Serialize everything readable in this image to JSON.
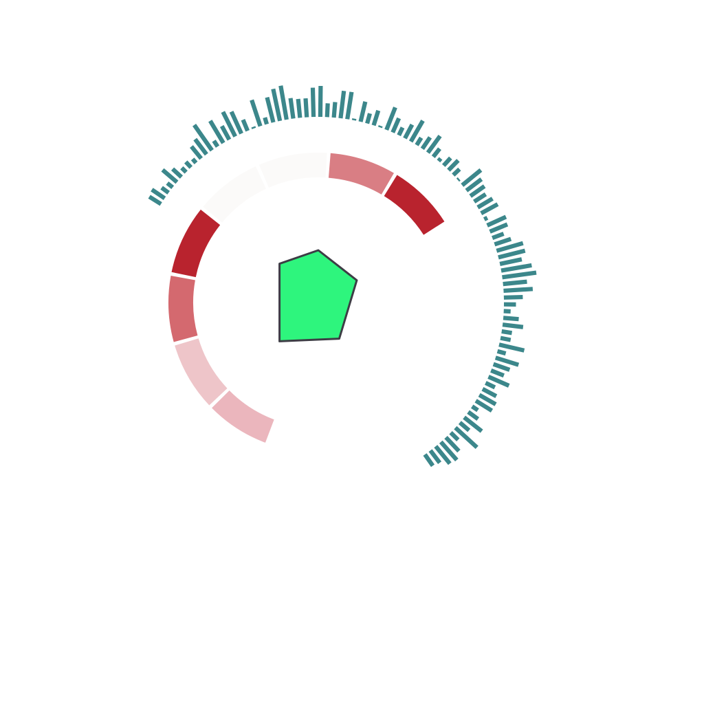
{
  "chart_data": {
    "type": "radial-composite",
    "title": "",
    "polygon": {
      "fill": "#2ef57d",
      "stroke": "#3d3d45",
      "vertices": [
        {
          "angle": 0,
          "r": 0.4
        },
        {
          "angle": 60,
          "r": 0.34
        },
        {
          "angle": 150,
          "r": 0.32
        },
        {
          "angle": 225,
          "r": 0.42
        },
        {
          "angle": 315,
          "r": 0.42
        }
      ]
    },
    "heat_ring": {
      "colors": [
        "#ebb6bd",
        "#eec5c9",
        "#d4696f",
        "#b9232e",
        "#fbfaf9",
        "#fbfaf9",
        "#d97e84",
        "#b9232e"
      ],
      "segments": [
        {
          "start_deg": 200,
          "end_deg": 226,
          "color_index": 0
        },
        {
          "start_deg": 226,
          "end_deg": 254,
          "color_index": 1
        },
        {
          "start_deg": 254,
          "end_deg": 281,
          "color_index": 2
        },
        {
          "start_deg": 281,
          "end_deg": 309,
          "color_index": 3
        },
        {
          "start_deg": 309,
          "end_deg": 336,
          "color_index": 4
        },
        {
          "start_deg": 336,
          "end_deg": 364,
          "color_index": 5
        },
        {
          "start_deg": 364,
          "end_deg": 391,
          "color_index": 6
        },
        {
          "start_deg": 391,
          "end_deg": 418,
          "color_index": 7
        }
      ]
    },
    "bar_ring": {
      "color": "#3c878b",
      "start_deg": 301,
      "end_deg": 506,
      "values": [
        0.4,
        0.45,
        0.25,
        0.2,
        0.55,
        0.35,
        0.18,
        0.22,
        0.15,
        0.45,
        0.55,
        0.9,
        0.2,
        0.75,
        0.45,
        0.8,
        0.7,
        0.35,
        0.05,
        0.8,
        0.2,
        0.75,
        0.95,
        1.0,
        0.6,
        0.55,
        0.55,
        0.85,
        0.9,
        0.4,
        0.45,
        0.8,
        0.8,
        0.05,
        0.6,
        0.3,
        0.45,
        0.05,
        0.7,
        0.45,
        0.25,
        0.45,
        0.7,
        0.25,
        0.4,
        0.6,
        0.3,
        0.1,
        0.3,
        0.4,
        0.25,
        0.05,
        0.7,
        0.55,
        0.5,
        0.4,
        0.5,
        0.55,
        0.1,
        0.6,
        0.55,
        0.35,
        0.5,
        0.8,
        0.8,
        0.65,
        0.9,
        1.0,
        0.7,
        0.85,
        0.55,
        0.35,
        0.2,
        0.45,
        0.6,
        0.3,
        0.3,
        0.75,
        0.25,
        0.7,
        0.5,
        0.4,
        0.65,
        0.3,
        0.45,
        0.55,
        0.55,
        0.2,
        0.35,
        0.65,
        0.35,
        0.85,
        0.3,
        0.55,
        0.7,
        0.65,
        0.45,
        0.4
      ]
    }
  }
}
